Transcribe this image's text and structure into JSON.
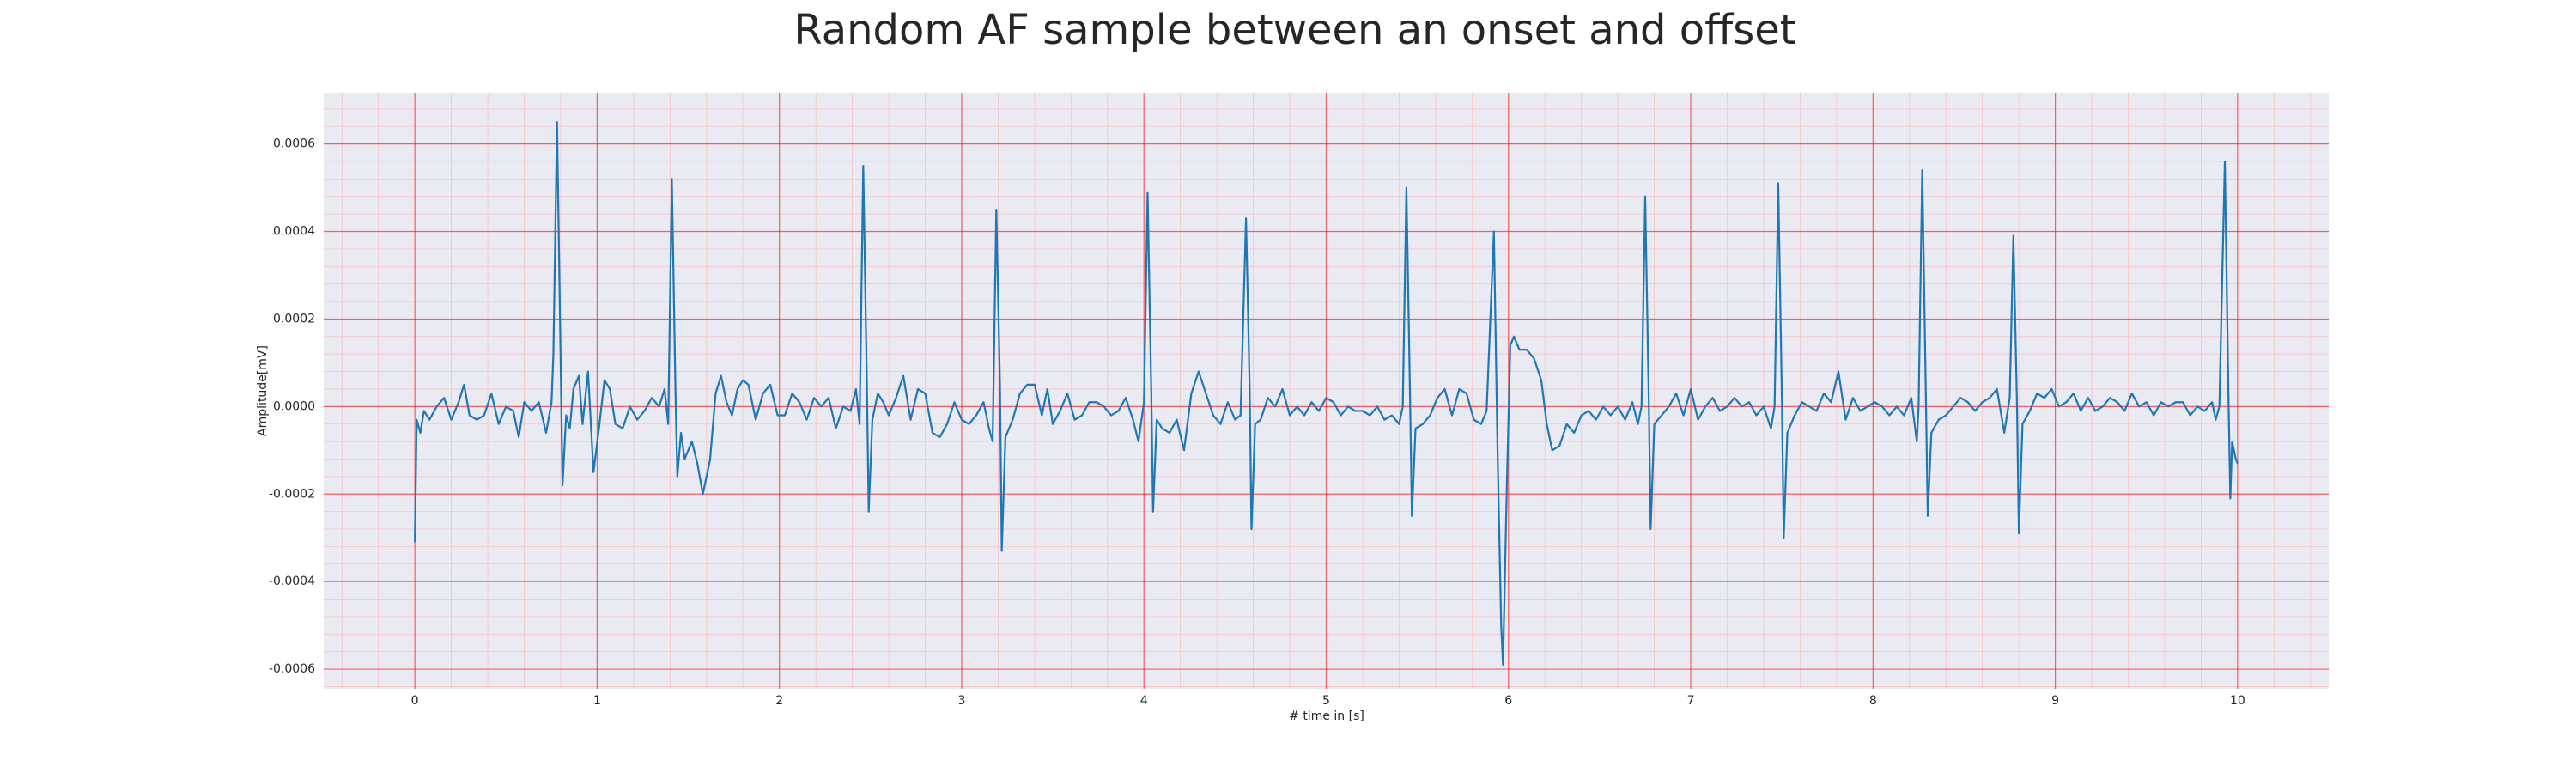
{
  "chart_data": {
    "type": "line",
    "title": "Random AF sample between an onset and offset",
    "xlabel": "# time in [s]",
    "ylabel": "Amplitude[mV]",
    "color": "#1f77b4",
    "grid": true,
    "minor_grid": true,
    "xlim": [
      -0.5,
      10.5
    ],
    "ylim": [
      -0.000645,
      0.000717
    ],
    "xticks": [
      0,
      1,
      2,
      3,
      4,
      5,
      6,
      7,
      8,
      9,
      10
    ],
    "yticks": [
      {
        "value": -0.0006,
        "label": "-0.0006"
      },
      {
        "value": -0.0004,
        "label": "-0.0004"
      },
      {
        "value": -0.0002,
        "label": "-0.0002"
      },
      {
        "value": 0,
        "label": "0.0000"
      },
      {
        "value": 0.0002,
        "label": "0.0002"
      },
      {
        "value": 0.0004,
        "label": "0.0004"
      },
      {
        "value": 0.0006,
        "label": "0.0006"
      }
    ],
    "x": [
      0.0,
      0.01,
      0.03,
      0.05,
      0.08,
      0.12,
      0.16,
      0.2,
      0.24,
      0.27,
      0.3,
      0.34,
      0.38,
      0.42,
      0.46,
      0.5,
      0.54,
      0.57,
      0.6,
      0.64,
      0.68,
      0.72,
      0.75,
      0.76,
      0.78,
      0.8,
      0.81,
      0.83,
      0.85,
      0.87,
      0.9,
      0.92,
      0.95,
      0.98,
      1.01,
      1.04,
      1.07,
      1.1,
      1.14,
      1.18,
      1.22,
      1.26,
      1.3,
      1.34,
      1.37,
      1.39,
      1.41,
      1.43,
      1.44,
      1.46,
      1.48,
      1.52,
      1.55,
      1.58,
      1.62,
      1.65,
      1.68,
      1.71,
      1.74,
      1.77,
      1.8,
      1.83,
      1.87,
      1.91,
      1.95,
      1.99,
      2.03,
      2.07,
      2.11,
      2.15,
      2.19,
      2.23,
      2.27,
      2.31,
      2.35,
      2.39,
      2.42,
      2.44,
      2.46,
      2.48,
      2.49,
      2.51,
      2.54,
      2.57,
      2.6,
      2.64,
      2.68,
      2.72,
      2.76,
      2.8,
      2.84,
      2.88,
      2.92,
      2.96,
      3.0,
      3.04,
      3.08,
      3.12,
      3.15,
      3.17,
      3.19,
      3.21,
      3.22,
      3.24,
      3.28,
      3.32,
      3.36,
      3.4,
      3.44,
      3.47,
      3.5,
      3.54,
      3.58,
      3.62,
      3.66,
      3.7,
      3.74,
      3.78,
      3.82,
      3.86,
      3.9,
      3.94,
      3.97,
      4.0,
      4.02,
      4.04,
      4.05,
      4.07,
      4.1,
      4.14,
      4.18,
      4.22,
      4.26,
      4.3,
      4.34,
      4.38,
      4.42,
      4.46,
      4.5,
      4.53,
      4.56,
      4.58,
      4.59,
      4.61,
      4.64,
      4.68,
      4.72,
      4.76,
      4.8,
      4.84,
      4.88,
      4.92,
      4.96,
      5.0,
      5.04,
      5.08,
      5.12,
      5.16,
      5.2,
      5.24,
      5.28,
      5.32,
      5.36,
      5.4,
      5.42,
      5.44,
      5.46,
      5.47,
      5.49,
      5.53,
      5.57,
      5.61,
      5.65,
      5.69,
      5.73,
      5.77,
      5.81,
      5.85,
      5.88,
      5.92,
      5.94,
      5.96,
      5.97,
      5.99,
      6.01,
      6.03,
      6.06,
      6.1,
      6.14,
      6.18,
      6.21,
      6.24,
      6.28,
      6.32,
      6.36,
      6.4,
      6.44,
      6.48,
      6.52,
      6.56,
      6.6,
      6.64,
      6.68,
      6.71,
      6.73,
      6.75,
      6.77,
      6.78,
      6.8,
      6.84,
      6.88,
      6.92,
      6.96,
      7.0,
      7.04,
      7.08,
      7.12,
      7.16,
      7.2,
      7.24,
      7.28,
      7.32,
      7.36,
      7.4,
      7.44,
      7.46,
      7.48,
      7.5,
      7.51,
      7.53,
      7.57,
      7.61,
      7.65,
      7.69,
      7.73,
      7.77,
      7.81,
      7.85,
      7.89,
      7.93,
      7.97,
      8.01,
      8.05,
      8.09,
      8.13,
      8.17,
      8.21,
      8.24,
      8.25,
      8.27,
      8.29,
      8.3,
      8.32,
      8.36,
      8.4,
      8.44,
      8.48,
      8.52,
      8.56,
      8.6,
      8.64,
      8.68,
      8.72,
      8.75,
      8.77,
      8.79,
      8.8,
      8.82,
      8.86,
      8.9,
      8.94,
      8.98,
      9.02,
      9.06,
      9.1,
      9.14,
      9.18,
      9.22,
      9.26,
      9.3,
      9.34,
      9.38,
      9.42,
      9.46,
      9.5,
      9.54,
      9.58,
      9.62,
      9.66,
      9.7,
      9.74,
      9.78,
      9.82,
      9.86,
      9.88,
      9.9,
      9.93,
      9.95,
      9.96,
      9.97,
      9.99,
      10.0
    ],
    "values": [
      -0.00031,
      -3e-05,
      -6e-05,
      -1e-05,
      -3e-05,
      0.0,
      2e-05,
      -3e-05,
      1e-05,
      5e-05,
      -2e-05,
      -3e-05,
      -2e-05,
      3e-05,
      -4e-05,
      0.0,
      -1e-05,
      -7e-05,
      1e-05,
      -1e-05,
      1e-05,
      -6e-05,
      1e-05,
      0.00012,
      0.00065,
      0.0001,
      -0.00018,
      -2e-05,
      -5e-05,
      4e-05,
      7e-05,
      -4e-05,
      8e-05,
      -0.00015,
      -5e-05,
      6e-05,
      4e-05,
      -4e-05,
      -5e-05,
      0.0,
      -3e-05,
      -1e-05,
      2e-05,
      0.0,
      4e-05,
      -4e-05,
      0.00052,
      3e-05,
      -0.00016,
      -6e-05,
      -0.00012,
      -8e-05,
      -0.00013,
      -0.0002,
      -0.00012,
      3e-05,
      7e-05,
      1e-05,
      -2e-05,
      4e-05,
      6e-05,
      5e-05,
      -3e-05,
      3e-05,
      5e-05,
      -2e-05,
      -2e-05,
      3e-05,
      1e-05,
      -3e-05,
      2e-05,
      0.0,
      2e-05,
      -5e-05,
      0.0,
      -1e-05,
      4e-05,
      -4e-05,
      0.00055,
      5e-05,
      -0.00024,
      -3e-05,
      3e-05,
      1e-05,
      -2e-05,
      2e-05,
      7e-05,
      -3e-05,
      4e-05,
      3e-05,
      -6e-05,
      -7e-05,
      -4e-05,
      1e-05,
      -3e-05,
      -4e-05,
      -2e-05,
      1e-05,
      -5e-05,
      -8e-05,
      0.00045,
      5e-05,
      -0.00033,
      -7e-05,
      -3e-05,
      3e-05,
      5e-05,
      5e-05,
      -2e-05,
      4e-05,
      -4e-05,
      -1e-05,
      3e-05,
      -3e-05,
      -2e-05,
      1e-05,
      1e-05,
      0.0,
      -2e-05,
      -1e-05,
      2e-05,
      -3e-05,
      -8e-05,
      1e-05,
      0.00049,
      4e-05,
      -0.00024,
      -3e-05,
      -5e-05,
      -6e-05,
      -3e-05,
      -0.0001,
      3e-05,
      8e-05,
      3e-05,
      -2e-05,
      -4e-05,
      1e-05,
      -3e-05,
      -2e-05,
      0.00043,
      4e-05,
      -0.00028,
      -4e-05,
      -3e-05,
      2e-05,
      0.0,
      4e-05,
      -2e-05,
      0.0,
      -2e-05,
      1e-05,
      -1e-05,
      2e-05,
      1e-05,
      -2e-05,
      0.0,
      -1e-05,
      -1e-05,
      -2e-05,
      0.0,
      -3e-05,
      -2e-05,
      -4e-05,
      0.0,
      0.0005,
      2e-05,
      -0.00025,
      -5e-05,
      -4e-05,
      -2e-05,
      2e-05,
      4e-05,
      -2e-05,
      4e-05,
      3e-05,
      -3e-05,
      -4e-05,
      -1e-05,
      0.0004,
      -0.0001,
      -0.0005,
      -0.00059,
      -0.0002,
      0.00014,
      0.00016,
      0.00013,
      0.00013,
      0.00011,
      6e-05,
      -4e-05,
      -0.0001,
      -9e-05,
      -4e-05,
      -6e-05,
      -2e-05,
      -1e-05,
      -3e-05,
      0.0,
      -2e-05,
      0.0,
      -3e-05,
      1e-05,
      -4e-05,
      0.0,
      0.00048,
      1e-05,
      -0.00028,
      -4e-05,
      -2e-05,
      0.0,
      3e-05,
      -2e-05,
      4e-05,
      -3e-05,
      0.0,
      2e-05,
      -1e-05,
      0.0,
      2e-05,
      0.0,
      1e-05,
      -2e-05,
      0.0,
      -5e-05,
      0.0,
      0.00051,
      2e-05,
      -0.0003,
      -6e-05,
      -2e-05,
      1e-05,
      0.0,
      -1e-05,
      3e-05,
      1e-05,
      8e-05,
      -3e-05,
      2e-05,
      -1e-05,
      0.0,
      1e-05,
      0.0,
      -2e-05,
      0.0,
      -2e-05,
      2e-05,
      -8e-05,
      0.0,
      0.00054,
      2e-05,
      -0.00025,
      -6e-05,
      -3e-05,
      -2e-05,
      0.0,
      2e-05,
      1e-05,
      -1e-05,
      1e-05,
      2e-05,
      4e-05,
      -6e-05,
      2e-05,
      0.00039,
      0.0,
      -0.00029,
      -4e-05,
      -1e-05,
      3e-05,
      2e-05,
      4e-05,
      0.0,
      1e-05,
      3e-05,
      -1e-05,
      2e-05,
      -1e-05,
      0.0,
      2e-05,
      1e-05,
      -1e-05,
      3e-05,
      0.0,
      1e-05,
      -2e-05,
      1e-05,
      0.0,
      1e-05,
      1e-05,
      -2e-05,
      0.0,
      -1e-05,
      1e-05,
      -3e-05,
      0.0,
      0.00056,
      2e-05,
      -0.00021,
      -8e-05,
      -0.00012,
      -0.00013
    ]
  }
}
